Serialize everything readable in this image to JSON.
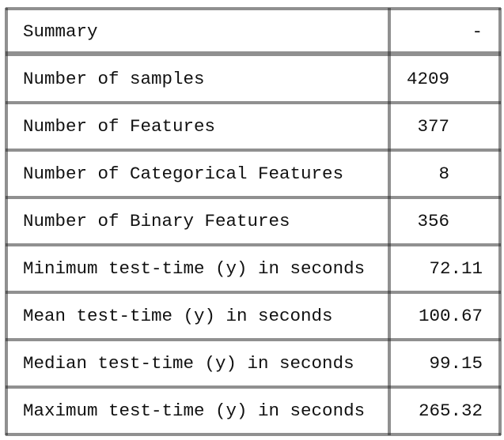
{
  "table": {
    "header": [
      "Summary",
      "-"
    ],
    "rows": [
      [
        "Number of samples",
        4209
      ],
      [
        "Number of Features",
        377
      ],
      [
        "Number of Categorical Features",
        8
      ],
      [
        "Number of Binary Features",
        356
      ],
      [
        "Minimum test-time (y) in seconds",
        72.11
      ],
      [
        "Mean test-time (y) in seconds",
        100.67
      ],
      [
        "Median test-time (y) in seconds",
        99.15
      ],
      [
        "Maximum test-time (y) in seconds",
        265.32
      ]
    ]
  }
}
